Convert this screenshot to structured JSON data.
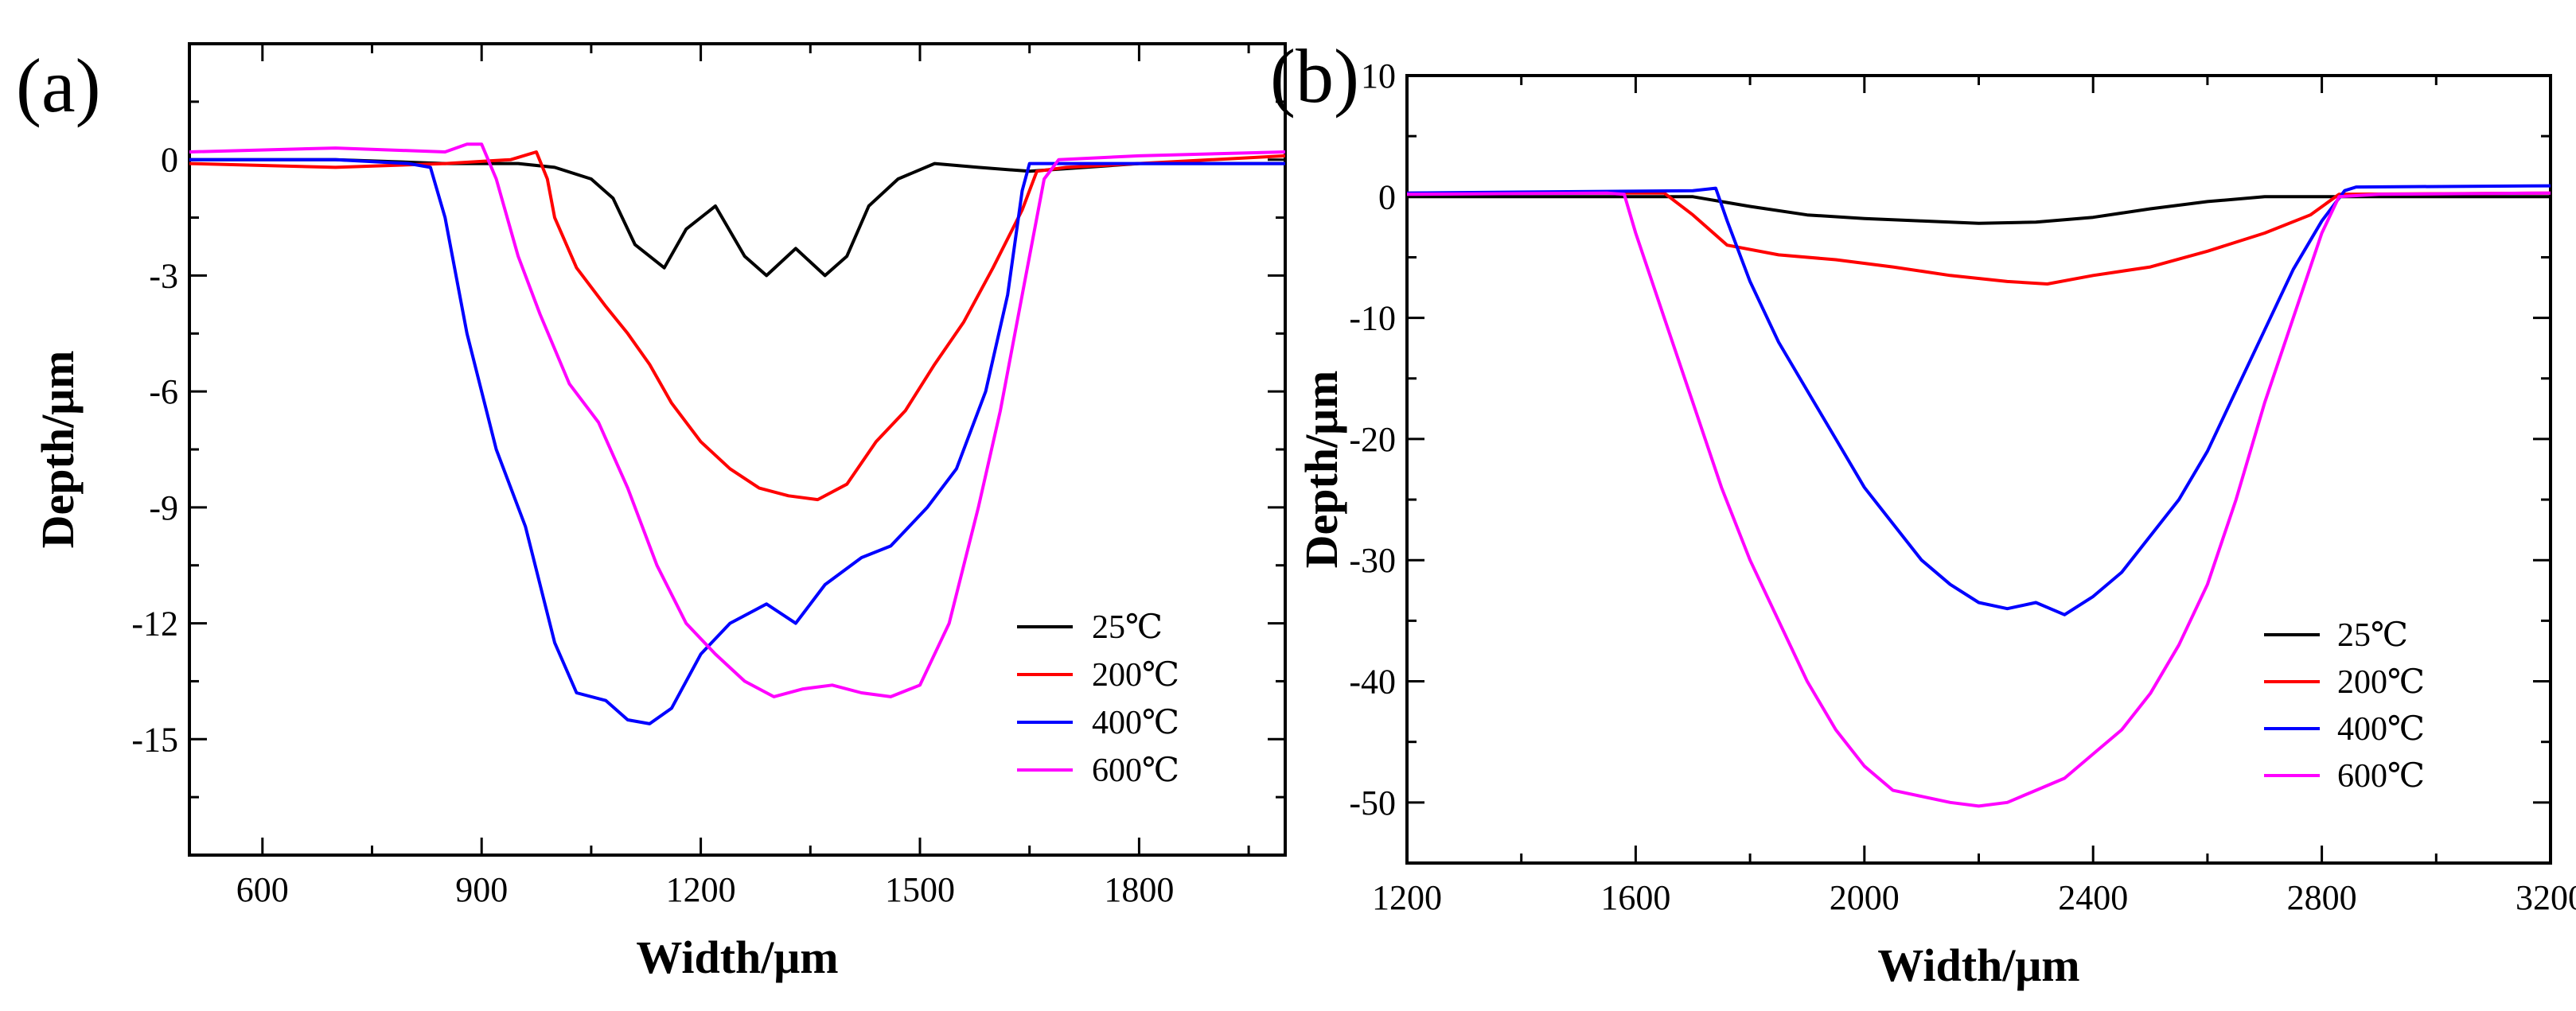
{
  "chart_data": [
    {
      "type": "line",
      "panel_label": "(a)",
      "xlabel": "Width/μm",
      "ylabel": "Depth/μm",
      "xlim": [
        500,
        2000
      ],
      "ylim": [
        -18,
        3
      ],
      "x_ticks": [
        600,
        900,
        1200,
        1500,
        1800
      ],
      "x_tick_labels": [
        "600",
        "900",
        "1200",
        "1500",
        "1800"
      ],
      "y_ticks": [
        0,
        -3,
        -6,
        -9,
        -12,
        -15
      ],
      "y_tick_labels": [
        "0",
        "-3",
        "-6",
        "-9",
        "-12",
        "-15"
      ],
      "legend_position": "bottom-right",
      "series": [
        {
          "name": "25℃",
          "color": "#000000",
          "points": [
            [
              500,
              0
            ],
            [
              700,
              0
            ],
            [
              850,
              -0.1
            ],
            [
              950,
              -0.1
            ],
            [
              1000,
              -0.2
            ],
            [
              1050,
              -0.5
            ],
            [
              1080,
              -1.0
            ],
            [
              1110,
              -2.2
            ],
            [
              1150,
              -2.8
            ],
            [
              1180,
              -1.8
            ],
            [
              1220,
              -1.2
            ],
            [
              1260,
              -2.5
            ],
            [
              1290,
              -3.0
            ],
            [
              1330,
              -2.3
            ],
            [
              1370,
              -3.0
            ],
            [
              1400,
              -2.5
            ],
            [
              1430,
              -1.2
            ],
            [
              1470,
              -0.5
            ],
            [
              1520,
              -0.1
            ],
            [
              1580,
              -0.2
            ],
            [
              1650,
              -0.3
            ],
            [
              1800,
              -0.1
            ],
            [
              2000,
              -0.1
            ]
          ]
        },
        {
          "name": "200℃",
          "color": "#ff0000",
          "points": [
            [
              500,
              -0.1
            ],
            [
              700,
              -0.2
            ],
            [
              850,
              -0.1
            ],
            [
              940,
              0.0
            ],
            [
              975,
              0.2
            ],
            [
              990,
              -0.5
            ],
            [
              1000,
              -1.5
            ],
            [
              1030,
              -2.8
            ],
            [
              1070,
              -3.8
            ],
            [
              1100,
              -4.5
            ],
            [
              1130,
              -5.3
            ],
            [
              1160,
              -6.3
            ],
            [
              1200,
              -7.3
            ],
            [
              1240,
              -8.0
            ],
            [
              1280,
              -8.5
            ],
            [
              1320,
              -8.7
            ],
            [
              1360,
              -8.8
            ],
            [
              1400,
              -8.4
            ],
            [
              1440,
              -7.3
            ],
            [
              1480,
              -6.5
            ],
            [
              1520,
              -5.3
            ],
            [
              1560,
              -4.2
            ],
            [
              1600,
              -2.8
            ],
            [
              1640,
              -1.3
            ],
            [
              1660,
              -0.3
            ],
            [
              1700,
              -0.2
            ],
            [
              2000,
              0.1
            ]
          ]
        },
        {
          "name": "400℃",
          "color": "#0000ff",
          "points": [
            [
              500,
              0
            ],
            [
              700,
              0
            ],
            [
              800,
              -0.1
            ],
            [
              830,
              -0.2
            ],
            [
              850,
              -1.5
            ],
            [
              880,
              -4.5
            ],
            [
              920,
              -7.5
            ],
            [
              960,
              -9.5
            ],
            [
              1000,
              -12.5
            ],
            [
              1030,
              -13.8
            ],
            [
              1070,
              -14.0
            ],
            [
              1100,
              -14.5
            ],
            [
              1130,
              -14.6
            ],
            [
              1160,
              -14.2
            ],
            [
              1200,
              -12.8
            ],
            [
              1240,
              -12.0
            ],
            [
              1290,
              -11.5
            ],
            [
              1330,
              -12.0
            ],
            [
              1370,
              -11.0
            ],
            [
              1420,
              -10.3
            ],
            [
              1460,
              -10.0
            ],
            [
              1510,
              -9.0
            ],
            [
              1550,
              -8.0
            ],
            [
              1590,
              -6.0
            ],
            [
              1620,
              -3.5
            ],
            [
              1640,
              -0.8
            ],
            [
              1650,
              -0.1
            ],
            [
              2000,
              -0.1
            ]
          ]
        },
        {
          "name": "600℃",
          "color": "#ff00ff",
          "points": [
            [
              500,
              0.2
            ],
            [
              700,
              0.3
            ],
            [
              850,
              0.2
            ],
            [
              880,
              0.4
            ],
            [
              900,
              0.4
            ],
            [
              920,
              -0.5
            ],
            [
              950,
              -2.5
            ],
            [
              980,
              -4.0
            ],
            [
              1020,
              -5.8
            ],
            [
              1060,
              -6.8
            ],
            [
              1100,
              -8.5
            ],
            [
              1140,
              -10.5
            ],
            [
              1180,
              -12.0
            ],
            [
              1220,
              -12.8
            ],
            [
              1260,
              -13.5
            ],
            [
              1300,
              -13.9
            ],
            [
              1340,
              -13.7
            ],
            [
              1380,
              -13.6
            ],
            [
              1420,
              -13.8
            ],
            [
              1460,
              -13.9
            ],
            [
              1500,
              -13.6
            ],
            [
              1540,
              -12.0
            ],
            [
              1580,
              -9.0
            ],
            [
              1610,
              -6.5
            ],
            [
              1640,
              -3.5
            ],
            [
              1670,
              -0.5
            ],
            [
              1690,
              0.0
            ],
            [
              1800,
              0.1
            ],
            [
              2000,
              0.2
            ]
          ]
        }
      ]
    },
    {
      "type": "line",
      "panel_label": "(b)",
      "xlabel": "Width/μm",
      "ylabel": "Depth/μm",
      "xlim": [
        1200,
        3200
      ],
      "ylim": [
        -55,
        10
      ],
      "x_ticks": [
        1200,
        1600,
        2000,
        2400,
        2800,
        3200
      ],
      "x_tick_labels": [
        "1200",
        "1600",
        "2000",
        "2400",
        "2800",
        "3200"
      ],
      "y_ticks": [
        10,
        0,
        -10,
        -20,
        -30,
        -40,
        -50
      ],
      "y_tick_labels": [
        "10",
        "0",
        "-10",
        "-20",
        "-30",
        "-40",
        "-50"
      ],
      "legend_position": "bottom-right",
      "series": [
        {
          "name": "25℃",
          "color": "#000000",
          "points": [
            [
              1200,
              0
            ],
            [
              1700,
              0
            ],
            [
              1800,
              -0.8
            ],
            [
              1900,
              -1.5
            ],
            [
              2000,
              -1.8
            ],
            [
              2100,
              -2.0
            ],
            [
              2200,
              -2.2
            ],
            [
              2300,
              -2.1
            ],
            [
              2400,
              -1.7
            ],
            [
              2500,
              -1.0
            ],
            [
              2600,
              -0.4
            ],
            [
              2700,
              0
            ],
            [
              3200,
              0
            ]
          ]
        },
        {
          "name": "200℃",
          "color": "#ff0000",
          "points": [
            [
              1200,
              0.3
            ],
            [
              1650,
              0.3
            ],
            [
              1700,
              -1.5
            ],
            [
              1760,
              -4.0
            ],
            [
              1850,
              -4.8
            ],
            [
              1950,
              -5.2
            ],
            [
              2050,
              -5.8
            ],
            [
              2150,
              -6.5
            ],
            [
              2250,
              -7.0
            ],
            [
              2320,
              -7.2
            ],
            [
              2400,
              -6.5
            ],
            [
              2500,
              -5.8
            ],
            [
              2600,
              -4.5
            ],
            [
              2700,
              -3.0
            ],
            [
              2780,
              -1.5
            ],
            [
              2830,
              0.2
            ],
            [
              3200,
              0.3
            ]
          ]
        },
        {
          "name": "400℃",
          "color": "#0000ff",
          "points": [
            [
              1200,
              0.3
            ],
            [
              1700,
              0.5
            ],
            [
              1740,
              0.7
            ],
            [
              1760,
              -2.0
            ],
            [
              1800,
              -7.0
            ],
            [
              1850,
              -12.0
            ],
            [
              1900,
              -16.0
            ],
            [
              1950,
              -20.0
            ],
            [
              2000,
              -24.0
            ],
            [
              2050,
              -27.0
            ],
            [
              2100,
              -30.0
            ],
            [
              2150,
              -32.0
            ],
            [
              2200,
              -33.5
            ],
            [
              2250,
              -34.0
            ],
            [
              2300,
              -33.5
            ],
            [
              2350,
              -34.5
            ],
            [
              2400,
              -33.0
            ],
            [
              2450,
              -31.0
            ],
            [
              2500,
              -28.0
            ],
            [
              2550,
              -25.0
            ],
            [
              2600,
              -21.0
            ],
            [
              2650,
              -16.0
            ],
            [
              2700,
              -11.0
            ],
            [
              2750,
              -6.0
            ],
            [
              2800,
              -2.0
            ],
            [
              2840,
              0.5
            ],
            [
              2860,
              0.8
            ],
            [
              3200,
              0.9
            ]
          ]
        },
        {
          "name": "600℃",
          "color": "#ff00ff",
          "points": [
            [
              1200,
              0.2
            ],
            [
              1550,
              0.3
            ],
            [
              1580,
              0.2
            ],
            [
              1600,
              -3.0
            ],
            [
              1650,
              -10.0
            ],
            [
              1700,
              -17.0
            ],
            [
              1750,
              -24.0
            ],
            [
              1800,
              -30.0
            ],
            [
              1850,
              -35.0
            ],
            [
              1900,
              -40.0
            ],
            [
              1950,
              -44.0
            ],
            [
              2000,
              -47.0
            ],
            [
              2050,
              -49.0
            ],
            [
              2100,
              -49.5
            ],
            [
              2150,
              -50.0
            ],
            [
              2200,
              -50.3
            ],
            [
              2250,
              -50.0
            ],
            [
              2300,
              -49.0
            ],
            [
              2350,
              -48.0
            ],
            [
              2400,
              -46.0
            ],
            [
              2450,
              -44.0
            ],
            [
              2500,
              -41.0
            ],
            [
              2550,
              -37.0
            ],
            [
              2600,
              -32.0
            ],
            [
              2650,
              -25.0
            ],
            [
              2700,
              -17.0
            ],
            [
              2750,
              -10.0
            ],
            [
              2800,
              -3.0
            ],
            [
              2830,
              0
            ],
            [
              2900,
              0.2
            ],
            [
              3200,
              0.3
            ]
          ]
        }
      ]
    }
  ]
}
